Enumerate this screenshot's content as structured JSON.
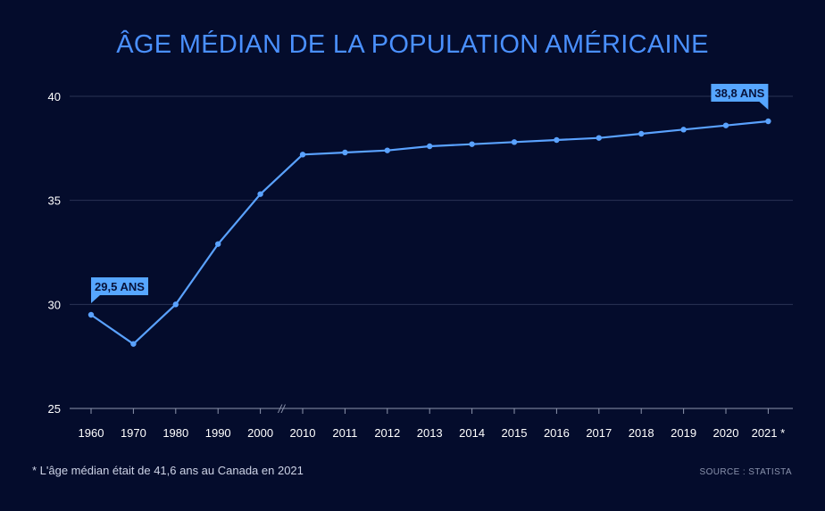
{
  "chart_data": {
    "type": "line",
    "title": "ÂGE MÉDIAN DE LA POPULATION AMÉRICAINE",
    "xlabel": "",
    "ylabel": "",
    "categories": [
      "1960",
      "1970",
      "1980",
      "1990",
      "2000",
      "2010",
      "2011",
      "2012",
      "2013",
      "2014",
      "2015",
      "2016",
      "2017",
      "2018",
      "2019",
      "2020",
      "2021"
    ],
    "x_tick_labels": [
      "1960",
      "1970",
      "1980",
      "1990",
      "2000",
      "2010",
      "2011",
      "2012",
      "2013",
      "2014",
      "2015",
      "2016",
      "2017",
      "2018",
      "2019",
      "2020",
      "2021 *"
    ],
    "series": [
      {
        "values": [
          29.5,
          28.1,
          30.0,
          32.9,
          35.3,
          37.2,
          37.3,
          37.4,
          37.6,
          37.7,
          37.8,
          37.9,
          38.0,
          38.2,
          38.4,
          38.6,
          38.8
        ]
      }
    ],
    "ylim": [
      25,
      40
    ],
    "yticks": [
      25,
      30,
      35,
      40
    ],
    "grid": true,
    "axis_break": "//",
    "annotations": [
      {
        "index": 0,
        "text": "29,5 ANS"
      },
      {
        "index": 16,
        "text": "38,8 ANS"
      }
    ],
    "footnote": "* L'âge médian était de 41,6 ans au Canada en 2021",
    "source": "SOURCE : STATISTA"
  },
  "colors": {
    "background": "#040c2c",
    "accent": "#4a90ff",
    "line": "#5aa2ff",
    "grid": "#2a3354",
    "label_bg": "#56a6ff",
    "label_text": "#07123a"
  }
}
